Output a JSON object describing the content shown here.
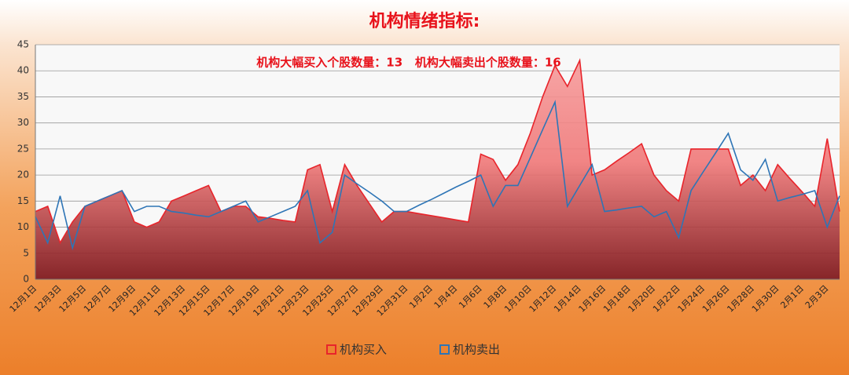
{
  "chart_data": {
    "type": "line",
    "title": "机构情绪指标:",
    "annotation": "机构大幅买入个股数量：13   机构大幅卖出个股数量：16",
    "categories": [
      "12月1日",
      null,
      "12月3日",
      null,
      "12月5日",
      null,
      "12月7日",
      null,
      "12月9日",
      null,
      "12月11日",
      null,
      "12月13日",
      null,
      "12月15日",
      null,
      "12月17日",
      null,
      "12月19日",
      null,
      "12月21日",
      null,
      "12月23日",
      null,
      "12月25日",
      null,
      "12月27日",
      null,
      "12月29日",
      null,
      "12月31日",
      null,
      "1月2日",
      null,
      "1月4日",
      null,
      "1月6日",
      null,
      "1月8日",
      null,
      "1月10日",
      null,
      "1月12日",
      null,
      "1月14日",
      null,
      "1月16日",
      null,
      "1月18日",
      null,
      "1月20日",
      null,
      "1月22日",
      null,
      "1月24日",
      null,
      "1月26日",
      null,
      "1月28日",
      null,
      "1月30日",
      null,
      "2月1日",
      null,
      "2月3日",
      null
    ],
    "series": [
      {
        "name": "机构买入",
        "color": "#e8242b",
        "area": true,
        "values": [
          13,
          14,
          7,
          11,
          14,
          15,
          16,
          17,
          11,
          10,
          11,
          15,
          16,
          17,
          18,
          13,
          14,
          14,
          12,
          11.7,
          11.3,
          11,
          21,
          22,
          13,
          22,
          18,
          14.5,
          11,
          13,
          13,
          12.6,
          12.2,
          11.8,
          11.4,
          11,
          24,
          23,
          19,
          22,
          28,
          35,
          41,
          37,
          42,
          20,
          21,
          22.7,
          24.3,
          26,
          20,
          17,
          15,
          25,
          25,
          25,
          25,
          18,
          20,
          17,
          22,
          19.3,
          16.7,
          14,
          27,
          13
        ]
      },
      {
        "name": "机构卖出",
        "color": "#2e75b6",
        "area": false,
        "values": [
          12,
          7,
          16,
          6,
          14,
          15,
          16,
          17,
          13,
          14,
          14,
          13,
          12.7,
          12.3,
          12,
          13,
          14,
          15,
          11,
          12,
          13,
          14,
          17,
          7,
          9,
          20,
          18.3,
          16.7,
          15,
          13,
          13,
          14.2,
          15.3,
          16.5,
          17.7,
          18.8,
          20,
          14,
          18,
          18,
          23.3,
          28.7,
          34,
          14,
          18,
          22,
          13,
          13.3,
          13.7,
          14,
          12,
          13,
          8,
          17,
          20.7,
          24.3,
          28,
          21,
          19,
          23,
          15,
          15.7,
          16.3,
          17,
          10,
          16
        ]
      }
    ],
    "ylim": [
      0,
      45
    ],
    "yticks": [
      0,
      5,
      10,
      15,
      20,
      25,
      30,
      35,
      40,
      45
    ],
    "grid": true,
    "legend": "bottom"
  }
}
